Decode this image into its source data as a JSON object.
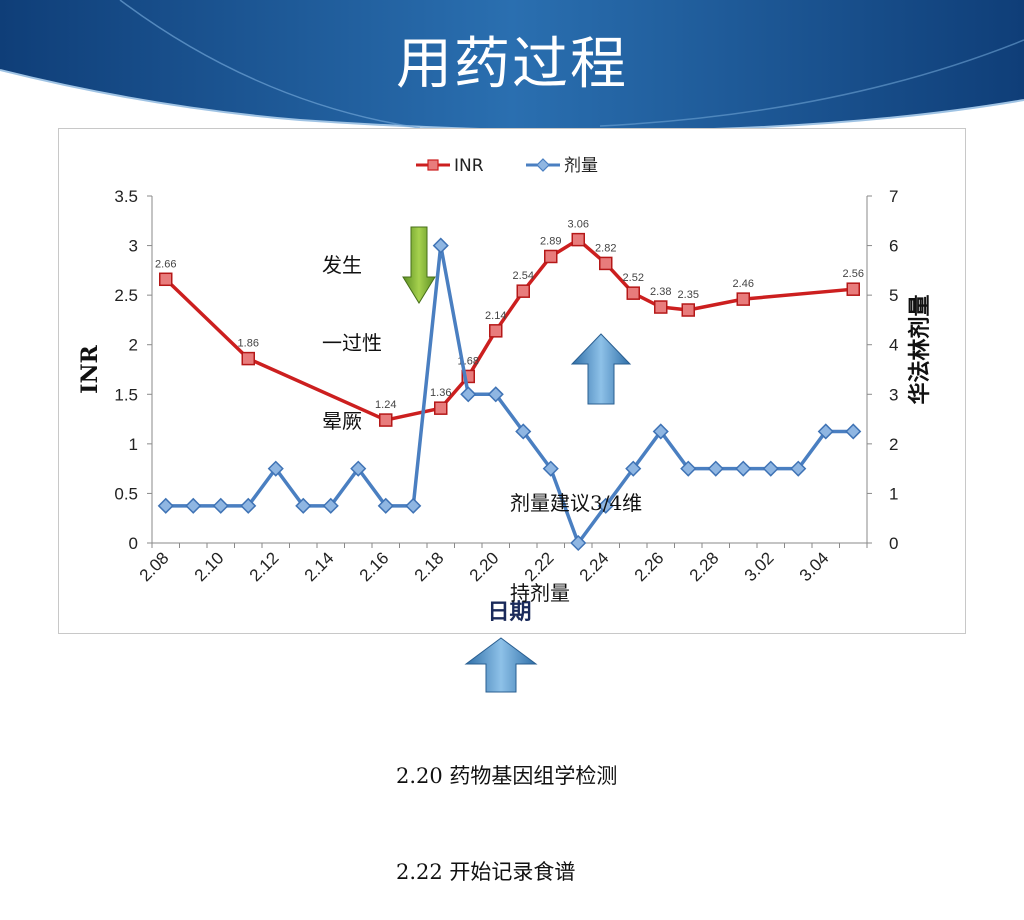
{
  "slide": {
    "title": "用药过程",
    "colors": {
      "header_dark": "#0f3e78",
      "header_light": "#3d86c4"
    }
  },
  "annotations": {
    "syncope": [
      "发生",
      "一过性",
      "晕厥"
    ],
    "dose_advice": [
      "剂量建议3/4维",
      "持剂量"
    ],
    "footer": [
      "2.20 药物基因组学检测",
      "2.22 开始记录食谱"
    ],
    "arrow_icons": [
      "arrow-down-green-icon",
      "arrow-up-blue-icon",
      "arrow-up-blue-icon"
    ]
  },
  "chart_data": {
    "type": "line",
    "xlabel": "日期",
    "ylabel": "INR",
    "y2label": "华法林剂量",
    "ylim": [
      0,
      3.5
    ],
    "y2lim": [
      0,
      7
    ],
    "yticks": [
      "0",
      "0.5",
      "1",
      "1.5",
      "2",
      "2.5",
      "3",
      "3.5"
    ],
    "y2ticks": [
      "0",
      "1",
      "2",
      "3",
      "4",
      "5",
      "6",
      "7"
    ],
    "x_tick_labels": [
      "2.08",
      "2.10",
      "2.12",
      "2.14",
      "2.16",
      "2.18",
      "2.20",
      "2.22",
      "2.24",
      "2.26",
      "2.28",
      "3.02",
      "3.04"
    ],
    "x_categories": [
      "2.08",
      "2.09",
      "2.10",
      "2.11",
      "2.12",
      "2.13",
      "2.14",
      "2.15",
      "2.16",
      "2.17",
      "2.18",
      "2.19",
      "2.20",
      "2.21",
      "2.22",
      "2.23",
      "2.24",
      "2.25",
      "2.26",
      "2.27",
      "2.28",
      "3.01",
      "3.02",
      "3.03",
      "3.04",
      "3.05"
    ],
    "legend_position": "top",
    "grid": false,
    "series": [
      {
        "name": "INR",
        "axis": "left",
        "color": "#cc1f1f",
        "marker": "square",
        "show_labels": true,
        "points": [
          {
            "x": "2.08",
            "y": 2.66
          },
          {
            "x": "2.11",
            "y": 1.86
          },
          {
            "x": "2.16",
            "y": 1.24
          },
          {
            "x": "2.18",
            "y": 1.36
          },
          {
            "x": "2.19",
            "y": 1.68
          },
          {
            "x": "2.20",
            "y": 2.14
          },
          {
            "x": "2.21",
            "y": 2.54
          },
          {
            "x": "2.22",
            "y": 2.89
          },
          {
            "x": "2.23",
            "y": 3.06
          },
          {
            "x": "2.24",
            "y": 2.82
          },
          {
            "x": "2.25",
            "y": 2.52
          },
          {
            "x": "2.26",
            "y": 2.38
          },
          {
            "x": "2.27",
            "y": 2.35
          },
          {
            "x": "3.01",
            "y": 2.46
          },
          {
            "x": "3.05",
            "y": 2.56
          }
        ]
      },
      {
        "name": "剂量",
        "axis": "right",
        "color": "#4a7fc1",
        "marker": "diamond",
        "show_labels": false,
        "points": [
          {
            "x": "2.08",
            "y": 0.75
          },
          {
            "x": "2.09",
            "y": 0.75
          },
          {
            "x": "2.10",
            "y": 0.75
          },
          {
            "x": "2.11",
            "y": 0.75
          },
          {
            "x": "2.12",
            "y": 1.5
          },
          {
            "x": "2.13",
            "y": 0.75
          },
          {
            "x": "2.14",
            "y": 0.75
          },
          {
            "x": "2.15",
            "y": 1.5
          },
          {
            "x": "2.16",
            "y": 0.75
          },
          {
            "x": "2.17",
            "y": 0.75
          },
          {
            "x": "2.18",
            "y": 6
          },
          {
            "x": "2.19",
            "y": 3
          },
          {
            "x": "2.20",
            "y": 3
          },
          {
            "x": "2.21",
            "y": 2.25
          },
          {
            "x": "2.22",
            "y": 1.5
          },
          {
            "x": "2.23",
            "y": 0
          },
          {
            "x": "2.24",
            "y": 0.75
          },
          {
            "x": "2.25",
            "y": 1.5
          },
          {
            "x": "2.26",
            "y": 2.25
          },
          {
            "x": "2.27",
            "y": 1.5
          },
          {
            "x": "2.28",
            "y": 1.5
          },
          {
            "x": "3.01",
            "y": 1.5
          },
          {
            "x": "3.02",
            "y": 1.5
          },
          {
            "x": "3.03",
            "y": 1.5
          },
          {
            "x": "3.04",
            "y": 2.25
          },
          {
            "x": "3.05",
            "y": 2.25
          }
        ]
      }
    ]
  }
}
